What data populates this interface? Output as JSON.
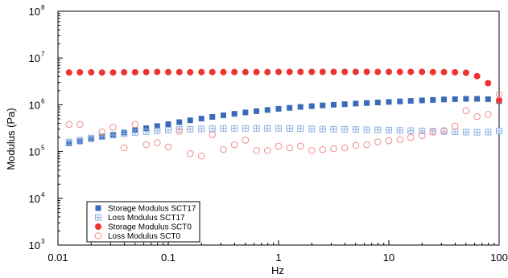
{
  "chart_data": {
    "type": "scatter",
    "title": "",
    "xlabel": "Hz",
    "ylabel": "Modulus (Pa)",
    "xscale": "log",
    "yscale": "log",
    "xlim": [
      0.01,
      100
    ],
    "ylim": [
      1000,
      100000000
    ],
    "grid": false,
    "legend_position": "bottom-left",
    "x_ticks": [
      {
        "value": 0.01,
        "label": "0.01"
      },
      {
        "value": 0.1,
        "label": "0.1"
      },
      {
        "value": 1,
        "label": "1"
      },
      {
        "value": 10,
        "label": "10"
      },
      {
        "value": 100,
        "label": "100"
      }
    ],
    "y_ticks": [
      {
        "value": 1000,
        "base": "10",
        "exp": "3"
      },
      {
        "value": 10000,
        "base": "10",
        "exp": "4"
      },
      {
        "value": 100000,
        "base": "10",
        "exp": "5"
      },
      {
        "value": 1000000,
        "base": "10",
        "exp": "6"
      },
      {
        "value": 10000000,
        "base": "10",
        "exp": "7"
      },
      {
        "value": 100000000,
        "base": "10",
        "exp": "8"
      }
    ],
    "x": [
      0.0126,
      0.0158,
      0.02,
      0.0251,
      0.0316,
      0.0398,
      0.0501,
      0.0631,
      0.0794,
      0.1,
      0.126,
      0.158,
      0.2,
      0.251,
      0.316,
      0.398,
      0.501,
      0.631,
      0.794,
      1,
      1.26,
      1.58,
      2,
      2.51,
      3.16,
      3.98,
      5.01,
      6.31,
      7.94,
      10,
      12.6,
      15.8,
      20,
      25.1,
      31.6,
      39.8,
      50.1,
      63.1,
      79.4,
      100
    ],
    "series": [
      {
        "name": "Storage Modulus SCT17",
        "color": "#3a6ab8",
        "marker": "filled-square",
        "values": [
          150000,
          165000,
          185000,
          205000,
          230000,
          255000,
          285000,
          315000,
          350000,
          385000,
          425000,
          465000,
          505000,
          550000,
          595000,
          640000,
          685000,
          730000,
          775000,
          820000,
          860000,
          900000,
          935000,
          970000,
          1000000,
          1030000,
          1060000,
          1090000,
          1120000,
          1150000,
          1180000,
          1210000,
          1240000,
          1270000,
          1300000,
          1320000,
          1340000,
          1340000,
          1320000,
          1200000
        ]
      },
      {
        "name": "Loss Modulus SCT17",
        "color": "#8fb1e3",
        "marker": "crossed-square",
        "values": [
          160000,
          175000,
          195000,
          210000,
          225000,
          240000,
          255000,
          265000,
          275000,
          285000,
          295000,
          300000,
          305000,
          308000,
          310000,
          312000,
          312000,
          312000,
          312000,
          312000,
          310000,
          308000,
          305000,
          302000,
          300000,
          298000,
          296000,
          293000,
          290000,
          287000,
          284000,
          280000,
          276000,
          272000,
          268000,
          264000,
          260000,
          258000,
          260000,
          275000
        ]
      },
      {
        "name": "Storage Modulus SCT0",
        "color": "#ee3333",
        "marker": "filled-circle",
        "values": [
          4900000,
          4950000,
          4950000,
          4900000,
          4900000,
          4950000,
          4950000,
          5000000,
          5050000,
          5000000,
          5000000,
          4950000,
          5000000,
          5000000,
          5000000,
          5000000,
          5000000,
          5000000,
          5000000,
          5050000,
          5050000,
          5050000,
          5050000,
          5050000,
          5050000,
          5050000,
          5050000,
          5050000,
          5050000,
          5050000,
          5050000,
          5050000,
          5050000,
          5000000,
          5000000,
          4950000,
          4850000,
          4100000,
          2900000,
          1250000
        ]
      },
      {
        "name": "Loss Modulus SCT0",
        "color": "#f28a8a",
        "marker": "open-circle",
        "values": [
          380000,
          380000,
          null,
          260000,
          330000,
          120000,
          380000,
          140000,
          155000,
          125000,
          270000,
          90000,
          80000,
          230000,
          110000,
          140000,
          175000,
          105000,
          105000,
          130000,
          120000,
          130000,
          105000,
          110000,
          115000,
          120000,
          135000,
          140000,
          160000,
          170000,
          180000,
          200000,
          220000,
          260000,
          280000,
          350000,
          750000,
          560000,
          620000,
          1650000
        ]
      }
    ]
  }
}
